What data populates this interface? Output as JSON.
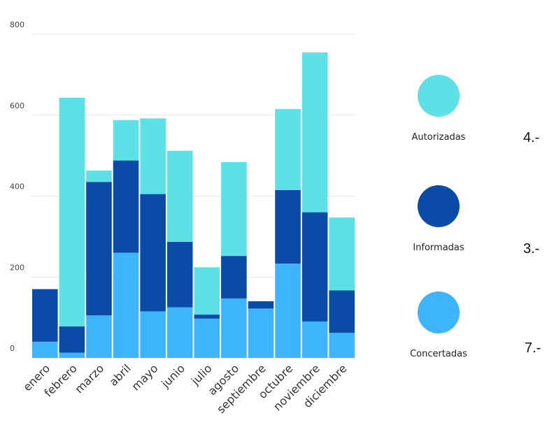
{
  "chart_data": {
    "type": "bar",
    "stacked": true,
    "categories": [
      "enero",
      "febrero",
      "marzo",
      "abril",
      "mayo",
      "junio",
      "julio",
      "agosto",
      "septiembre",
      "octubre",
      "noviembre",
      "diciembre"
    ],
    "series": [
      {
        "name": "Concertadas",
        "color": "#3db4fb",
        "values": [
          40,
          13,
          105,
          260,
          115,
          125,
          97,
          147,
          122,
          233,
          90,
          62
        ]
      },
      {
        "name": "Informadas",
        "color": "#0a4ba8",
        "values": [
          130,
          65,
          330,
          228,
          290,
          162,
          10,
          105,
          18,
          182,
          270,
          105
        ]
      },
      {
        "name": "Autorizadas",
        "color": "#5de0e6",
        "values": [
          0,
          565,
          28,
          100,
          187,
          225,
          117,
          232,
          0,
          200,
          395,
          180
        ]
      }
    ],
    "yticks": [
      0,
      200,
      400,
      600,
      800
    ],
    "ylim": [
      0,
      800
    ],
    "grid": true,
    "legend_position": "right"
  },
  "side_notes": [
    "4.-",
    "3.-",
    "7.-"
  ]
}
